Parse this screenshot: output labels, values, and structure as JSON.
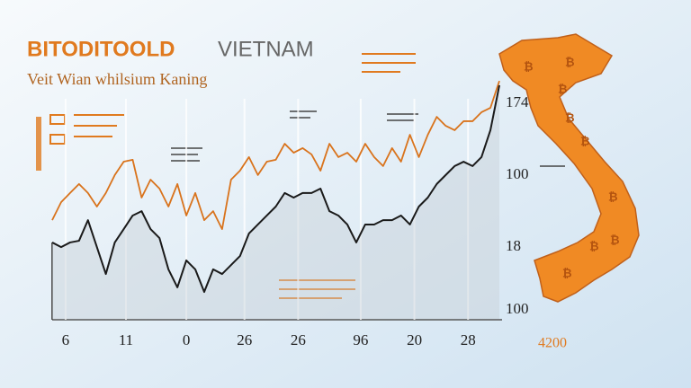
{
  "chart_data": {
    "type": "line",
    "title": "BITODITOOLD",
    "title_suffix": "VIETNAM",
    "subtitle": "Veit Wian whilsium Kaning",
    "x": [
      0,
      2,
      4,
      6,
      8,
      10,
      12,
      14,
      16,
      18,
      20,
      22,
      24,
      26,
      28,
      30,
      32,
      34,
      36,
      38,
      40,
      42,
      44,
      46,
      48,
      50,
      52,
      54,
      56,
      58,
      60,
      62,
      64,
      66,
      68,
      70,
      72,
      74,
      76,
      78,
      80,
      82,
      84,
      86,
      88,
      90,
      92,
      94,
      96,
      98,
      100
    ],
    "xlim": [
      0,
      100
    ],
    "xticks": [
      {
        "value": 3,
        "label": "6"
      },
      {
        "value": 16.5,
        "label": "11"
      },
      {
        "value": 30,
        "label": "0"
      },
      {
        "value": 43,
        "label": "26"
      },
      {
        "value": 55,
        "label": "26"
      },
      {
        "value": 69,
        "label": "96"
      },
      {
        "value": 81,
        "label": "20"
      },
      {
        "value": 93,
        "label": "28"
      }
    ],
    "ylim": [
      0,
      100
    ],
    "series": [
      {
        "color": "#d9731c",
        "values": [
          40.7,
          48.1,
          51.9,
          55.6,
          51.9,
          46.3,
          51.9,
          59.3,
          64.8,
          65.6,
          50,
          57.4,
          53.7,
          46.3,
          55.6,
          42.6,
          51.9,
          40.7,
          44.4,
          37,
          57.4,
          61.1,
          66.7,
          59.3,
          64.8,
          65.6,
          72.2,
          68.5,
          70.4,
          67.8,
          61.1,
          72.2,
          66.7,
          68.5,
          64.8,
          72.2,
          66.7,
          63,
          70.4,
          64.8,
          75.9,
          66.7,
          75.9,
          83.3,
          79.6,
          77.8,
          81.5,
          81.5,
          85.2,
          87,
          98.1
        ]
      },
      {
        "color": "#1a1a1a",
        "values": [
          31.5,
          29.6,
          31.5,
          32.2,
          40.7,
          29.6,
          18.5,
          31.5,
          37,
          42.6,
          44.4,
          37,
          33.3,
          20.4,
          13,
          24.1,
          20.4,
          11.1,
          20.4,
          18.5,
          22.2,
          25.9,
          35.2,
          38.9,
          42.6,
          46.3,
          51.9,
          50,
          51.9,
          51.9,
          53.7,
          44.4,
          42.6,
          38.9,
          31.5,
          38.9,
          38.9,
          40.7,
          40.7,
          42.6,
          38.9,
          46.3,
          50,
          55.6,
          59.3,
          63,
          64.8,
          63,
          66.7,
          77.8,
          96.3
        ]
      }
    ],
    "right_labels": [
      "174",
      "100",
      "18",
      "100"
    ],
    "corner_label": "4200"
  },
  "map": {
    "symbol": "₿"
  }
}
